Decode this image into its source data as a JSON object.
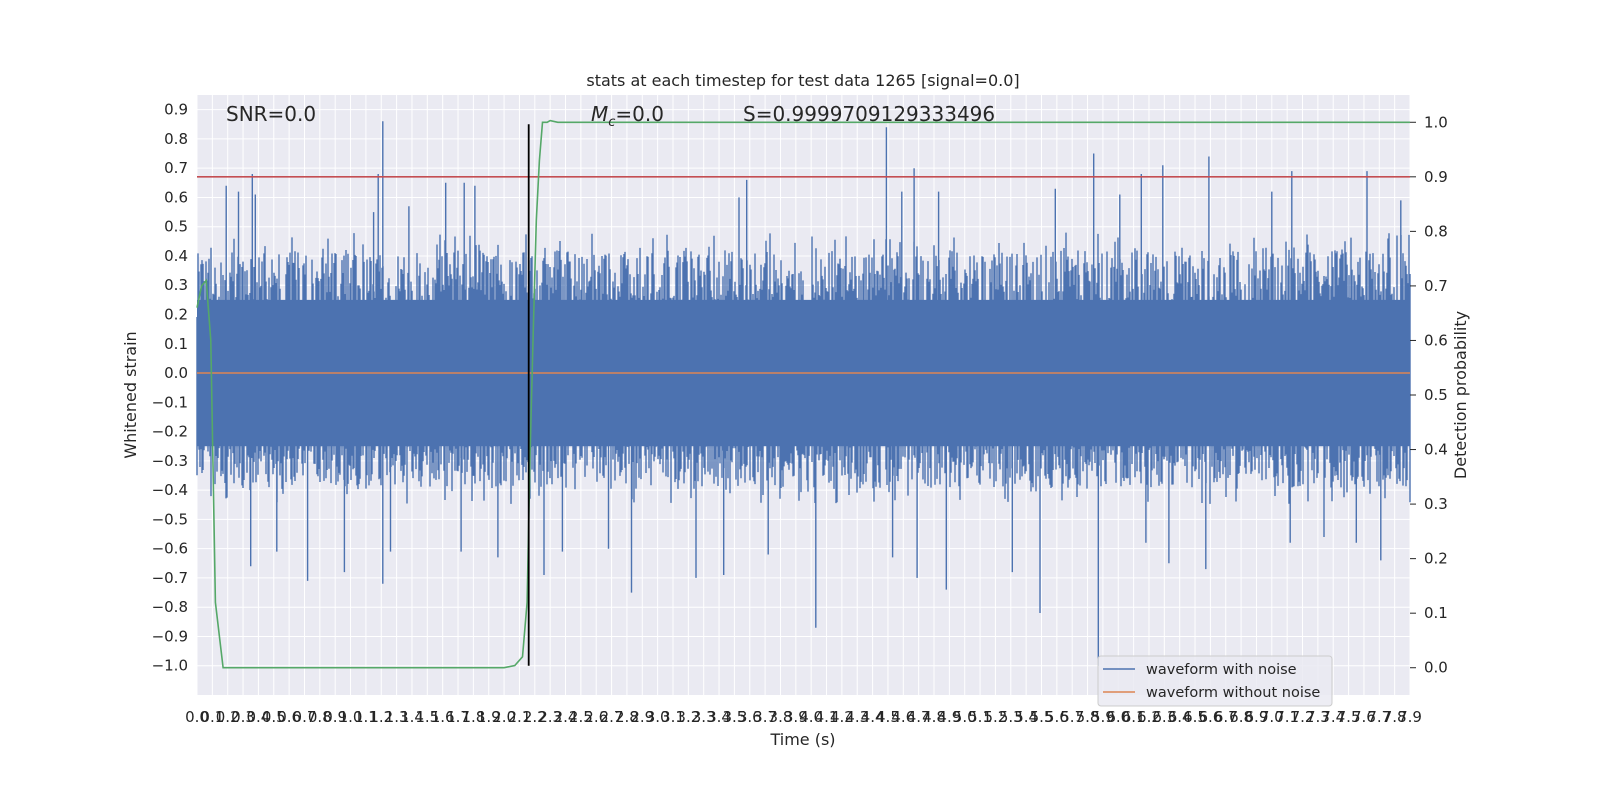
{
  "chart_data": {
    "type": "line",
    "title": "stats at each timestep for test data 1265 [signal=0.0]",
    "xlabel": "Time (s)",
    "ylabel": "Whitened strain",
    "y2label": "Detection probability",
    "xlim": [
      0.0,
      7.9
    ],
    "ylim": [
      -1.1,
      0.95
    ],
    "y2lim": [
      -0.05,
      1.05
    ],
    "x_ticks": [
      0.0,
      0.1,
      0.2,
      0.3,
      0.4,
      0.5,
      0.6,
      0.7,
      0.8,
      0.9,
      1.0,
      1.1,
      1.2,
      1.3,
      1.4,
      1.5,
      1.6,
      1.7,
      1.8,
      1.9,
      2.0,
      2.1,
      2.2,
      2.3,
      2.4,
      2.5,
      2.6,
      2.7,
      2.8,
      2.9,
      3.0,
      3.1,
      3.2,
      3.3,
      3.4,
      3.5,
      3.6,
      3.7,
      3.8,
      3.9,
      4.0,
      4.1,
      4.2,
      4.3,
      4.4,
      4.5,
      4.6,
      4.7,
      4.8,
      4.9,
      5.0,
      5.1,
      5.2,
      5.3,
      5.4,
      5.5,
      5.6,
      5.7,
      5.8,
      5.9,
      6.0,
      6.1,
      6.2,
      6.3,
      6.4,
      6.5,
      6.6,
      6.7,
      6.8,
      6.9,
      7.0,
      7.1,
      7.2,
      7.3,
      7.4,
      7.5,
      7.6,
      7.7,
      7.8,
      7.9
    ],
    "x_tick_labels": [
      "0.0",
      "0.1",
      "0.2",
      "0.3",
      "0.4",
      "0.5",
      "0.6",
      "0.7",
      "0.8",
      "0.9",
      "1.0",
      "1.1",
      "1.2",
      "1.3",
      "1.4",
      "1.5",
      "1.6",
      "1.7",
      "1.8",
      "1.9",
      "2.0",
      "2.1",
      "2.2",
      "2.3",
      "2.4",
      "2.5",
      "2.6",
      "2.7",
      "2.8",
      "2.9",
      "3.0",
      "3.1",
      "3.2",
      "3.3",
      "3.4",
      "3.5",
      "3.6",
      "3.7",
      "3.8",
      "3.9",
      "4.0",
      "4.1",
      "4.2",
      "4.3",
      "4.4",
      "4.5",
      "4.6",
      "4.7",
      "4.8",
      "4.9",
      "5.0",
      "5.1",
      "5.2",
      "5.3",
      "5.4",
      "5.5",
      "5.6",
      "5.7",
      "5.8",
      "5.9",
      "6.0",
      "6.1",
      "6.2",
      "6.3",
      "6.4",
      "6.5",
      "6.6",
      "6.7",
      "6.8",
      "6.9",
      "7.0",
      "7.1",
      "7.2",
      "7.3",
      "7.4",
      "7.5",
      "7.6",
      "7.7",
      "7.8",
      "7.9"
    ],
    "y_ticks": [
      0.9,
      0.8,
      0.7,
      0.6,
      0.5,
      0.4,
      0.3,
      0.2,
      0.1,
      0.0,
      -0.1,
      -0.2,
      -0.3,
      -0.4,
      -0.5,
      -0.6,
      -0.7,
      -0.8,
      -0.9,
      -1.0
    ],
    "y_tick_labels": [
      "0.9",
      "0.8",
      "0.7",
      "0.6",
      "0.5",
      "0.4",
      "0.3",
      "0.2",
      "0.1",
      "0.0",
      "−0.1",
      "−0.2",
      "−0.3",
      "−0.4",
      "−0.5",
      "−0.6",
      "−0.7",
      "−0.8",
      "−0.9",
      "−1.0"
    ],
    "y2_ticks": [
      1.0,
      0.9,
      0.8,
      0.7,
      0.6,
      0.5,
      0.4,
      0.3,
      0.2,
      0.1,
      0.0
    ],
    "y2_tick_labels": [
      "1.0",
      "0.9",
      "0.8",
      "0.7",
      "0.6",
      "0.5",
      "0.4",
      "0.3",
      "0.2",
      "0.1",
      "0.0"
    ],
    "grid": true,
    "legend_position": "lower right",
    "annotations": {
      "snr": "SNR=0.0",
      "mc_symbol": "M",
      "mc_sub": "c",
      "mc_value": "=0.0",
      "s_text": "S=0.9999709129333496"
    },
    "series": [
      {
        "name": "waveform with noise",
        "color": "#4c72b0",
        "axis": "left",
        "render": "noise_band",
        "typical_range": [
          -0.45,
          0.48
        ],
        "peaks": [
          [
            0.19,
            0.64
          ],
          [
            0.27,
            0.62
          ],
          [
            0.36,
            0.68
          ],
          [
            0.38,
            0.61
          ],
          [
            1.21,
            0.86
          ],
          [
            1.18,
            0.68
          ],
          [
            1.15,
            0.55
          ],
          [
            1.38,
            0.57
          ],
          [
            1.62,
            0.65
          ],
          [
            1.74,
            0.65
          ],
          [
            1.81,
            0.64
          ],
          [
            3.53,
            0.6
          ],
          [
            3.58,
            0.66
          ],
          [
            4.49,
            0.84
          ],
          [
            4.59,
            0.62
          ],
          [
            4.67,
            0.7
          ],
          [
            4.83,
            0.62
          ],
          [
            5.59,
            0.63
          ],
          [
            5.84,
            0.75
          ],
          [
            6.01,
            0.61
          ],
          [
            6.15,
            0.68
          ],
          [
            6.29,
            0.71
          ],
          [
            6.59,
            0.74
          ],
          [
            7.0,
            0.62
          ],
          [
            7.13,
            0.69
          ],
          [
            7.62,
            0.69
          ],
          [
            7.84,
            0.59
          ]
        ],
        "troughs": [
          [
            0.35,
            -0.66
          ],
          [
            0.52,
            -0.61
          ],
          [
            0.72,
            -0.71
          ],
          [
            0.96,
            -0.68
          ],
          [
            1.21,
            -0.72
          ],
          [
            1.26,
            -0.61
          ],
          [
            1.72,
            -0.61
          ],
          [
            1.96,
            -0.63
          ],
          [
            2.26,
            -0.69
          ],
          [
            2.38,
            -0.61
          ],
          [
            2.83,
            -0.75
          ],
          [
            2.68,
            -0.6
          ],
          [
            3.25,
            -0.7
          ],
          [
            3.43,
            -0.69
          ],
          [
            3.72,
            -0.62
          ],
          [
            4.03,
            -0.87
          ],
          [
            4.53,
            -0.63
          ],
          [
            4.69,
            -0.7
          ],
          [
            4.88,
            -0.74
          ],
          [
            5.31,
            -0.68
          ],
          [
            5.49,
            -0.82
          ],
          [
            5.87,
            -1.0
          ],
          [
            6.18,
            -0.58
          ],
          [
            6.33,
            -0.65
          ],
          [
            6.57,
            -0.67
          ],
          [
            7.12,
            -0.58
          ],
          [
            7.34,
            -0.56
          ],
          [
            7.55,
            -0.58
          ],
          [
            7.71,
            -0.64
          ]
        ]
      },
      {
        "name": "waveform without noise",
        "color": "#dd8452",
        "axis": "left",
        "x": [
          0.0,
          7.9
        ],
        "y": [
          0.0,
          0.0
        ]
      },
      {
        "color": "#55a868",
        "axis": "right",
        "x": [
          0.0,
          0.03,
          0.06,
          0.09,
          0.12,
          0.17,
          1.8,
          2.0,
          2.07,
          2.12,
          2.15,
          2.17,
          2.19,
          2.21,
          2.23,
          2.25,
          2.28,
          2.3,
          2.35,
          2.4,
          7.9
        ],
        "y": [
          0.66,
          0.7,
          0.71,
          0.6,
          0.12,
          0.0,
          0.0,
          0.0,
          0.004,
          0.02,
          0.12,
          0.4,
          0.62,
          0.82,
          0.93,
          1.0,
          1.0,
          1.003,
          1.0,
          1.0,
          1.0
        ]
      },
      {
        "color": "#c44e52",
        "axis": "right",
        "x": [
          0.0,
          7.9
        ],
        "y": [
          0.9,
          0.9
        ]
      },
      {
        "color": "#000000",
        "axis": "left",
        "x": [
          2.16,
          2.16
        ],
        "y": [
          -1.0,
          0.85
        ]
      }
    ]
  }
}
